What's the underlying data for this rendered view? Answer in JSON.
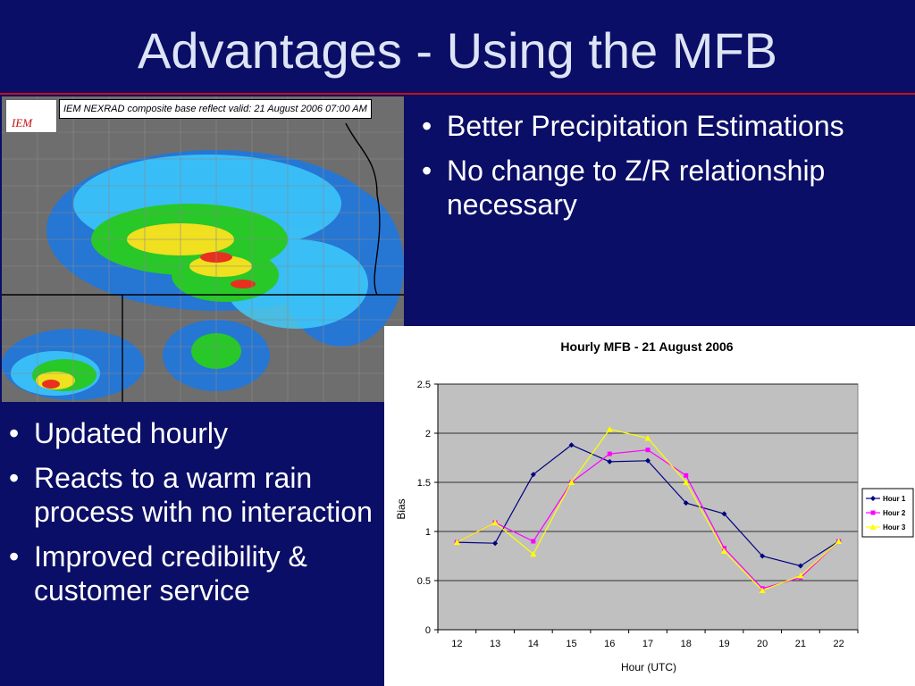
{
  "slide": {
    "title": "Advantages - Using the MFB"
  },
  "radar": {
    "header": "IEM NEXRAD composite base reflect valid: 21 August 2006 07:00 AM",
    "logo_text": "IEM"
  },
  "bullets_right": [
    "Better Precipitation Estimations",
    "No change to Z/R relationship necessary"
  ],
  "bullets_left": [
    "Updated hourly",
    "Reacts to a warm rain process with no interaction",
    "Improved credibility & customer service"
  ],
  "colors": {
    "background": "#0b0e66",
    "title_rule": "#c81010",
    "plot_area": "#c0c0c0",
    "hour1": "#000080",
    "hour2": "#ff00ff",
    "hour3": "#ffff00"
  },
  "chart_data": {
    "type": "line",
    "title": "Hourly MFB - 21 August 2006",
    "xlabel": "Hour (UTC)",
    "ylabel": "Bias",
    "categories": [
      "12",
      "13",
      "14",
      "15",
      "16",
      "17",
      "18",
      "19",
      "20",
      "21",
      "22"
    ],
    "ylim": [
      0,
      2.5
    ],
    "yticks": [
      "0",
      "0.5",
      "1",
      "1.5",
      "2",
      "2.5"
    ],
    "grid": true,
    "legend_position": "right",
    "series": [
      {
        "name": "Hour 1",
        "color": "#000080",
        "marker": "diamond",
        "values": [
          0.89,
          0.88,
          1.58,
          1.88,
          1.71,
          1.72,
          1.29,
          1.18,
          0.75,
          0.65,
          0.9
        ]
      },
      {
        "name": "Hour 2",
        "color": "#ff00ff",
        "marker": "square",
        "values": [
          0.89,
          1.09,
          0.9,
          1.5,
          1.79,
          1.83,
          1.57,
          0.83,
          0.42,
          0.53,
          0.9
        ]
      },
      {
        "name": "Hour 3",
        "color": "#ffff00",
        "marker": "triangle",
        "values": [
          0.89,
          1.09,
          0.77,
          1.5,
          2.04,
          1.95,
          1.5,
          0.8,
          0.4,
          0.55,
          0.9
        ]
      }
    ]
  }
}
